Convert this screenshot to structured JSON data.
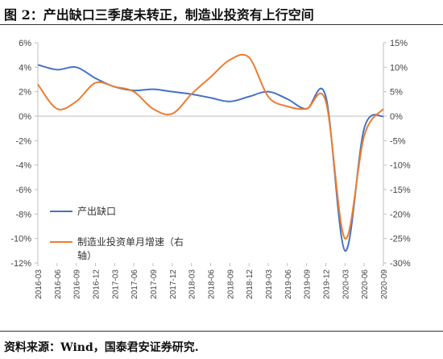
{
  "header": {
    "title": "图 2：产出缺口三季度未转正，制造业投资有上行空间"
  },
  "footer": {
    "source": "资料来源：Wind，国泰君安证券研究."
  },
  "colors": {
    "series_blue": "#4472C4",
    "series_orange": "#ED7D31",
    "axis": "#bfbfbf",
    "text": "#404040"
  },
  "chart_data": {
    "type": "line",
    "x": [
      "2016-03",
      "2016-06",
      "2016-09",
      "2016-12",
      "2017-03",
      "2017-06",
      "2017-09",
      "2017-12",
      "2018-03",
      "2018-06",
      "2018-09",
      "2018-12",
      "2019-03",
      "2019-06",
      "2019-09",
      "2019-12",
      "2020-03",
      "2020-06",
      "2020-09"
    ],
    "left_axis": {
      "ticks": [
        "6%",
        "4%",
        "2%",
        "0%",
        "-2%",
        "-4%",
        "-6%",
        "-8%",
        "-10%",
        "-12%"
      ],
      "ylim": [
        -12,
        6
      ]
    },
    "right_axis": {
      "ticks": [
        "15%",
        "10%",
        "5%",
        "0%",
        "-5%",
        "-10%",
        "-15%",
        "-20%",
        "-25%",
        "-30%"
      ],
      "ylim": [
        -30,
        15
      ]
    },
    "legend_placement": "lower-left",
    "series": [
      {
        "name": "产出缺口",
        "axis": "left",
        "color": "#4472C4",
        "values": [
          4.2,
          3.8,
          4.0,
          3.1,
          2.4,
          2.1,
          2.2,
          2.0,
          1.8,
          1.5,
          1.2,
          1.6,
          2.0,
          1.4,
          0.6,
          1.6,
          -11.0,
          -1.0,
          0.0
        ]
      },
      {
        "name": "制造业投资单月增速（右轴）",
        "legend_lines": [
          "制造业投资单月增速（右",
          "轴）"
        ],
        "axis": "right",
        "color": "#ED7D31",
        "values": [
          6.5,
          1.5,
          3.0,
          6.8,
          6.0,
          5.0,
          1.5,
          0.5,
          4.5,
          8.0,
          11.5,
          12.0,
          4.0,
          2.0,
          1.5,
          3.0,
          -25.0,
          -4.0,
          1.5
        ]
      }
    ]
  }
}
